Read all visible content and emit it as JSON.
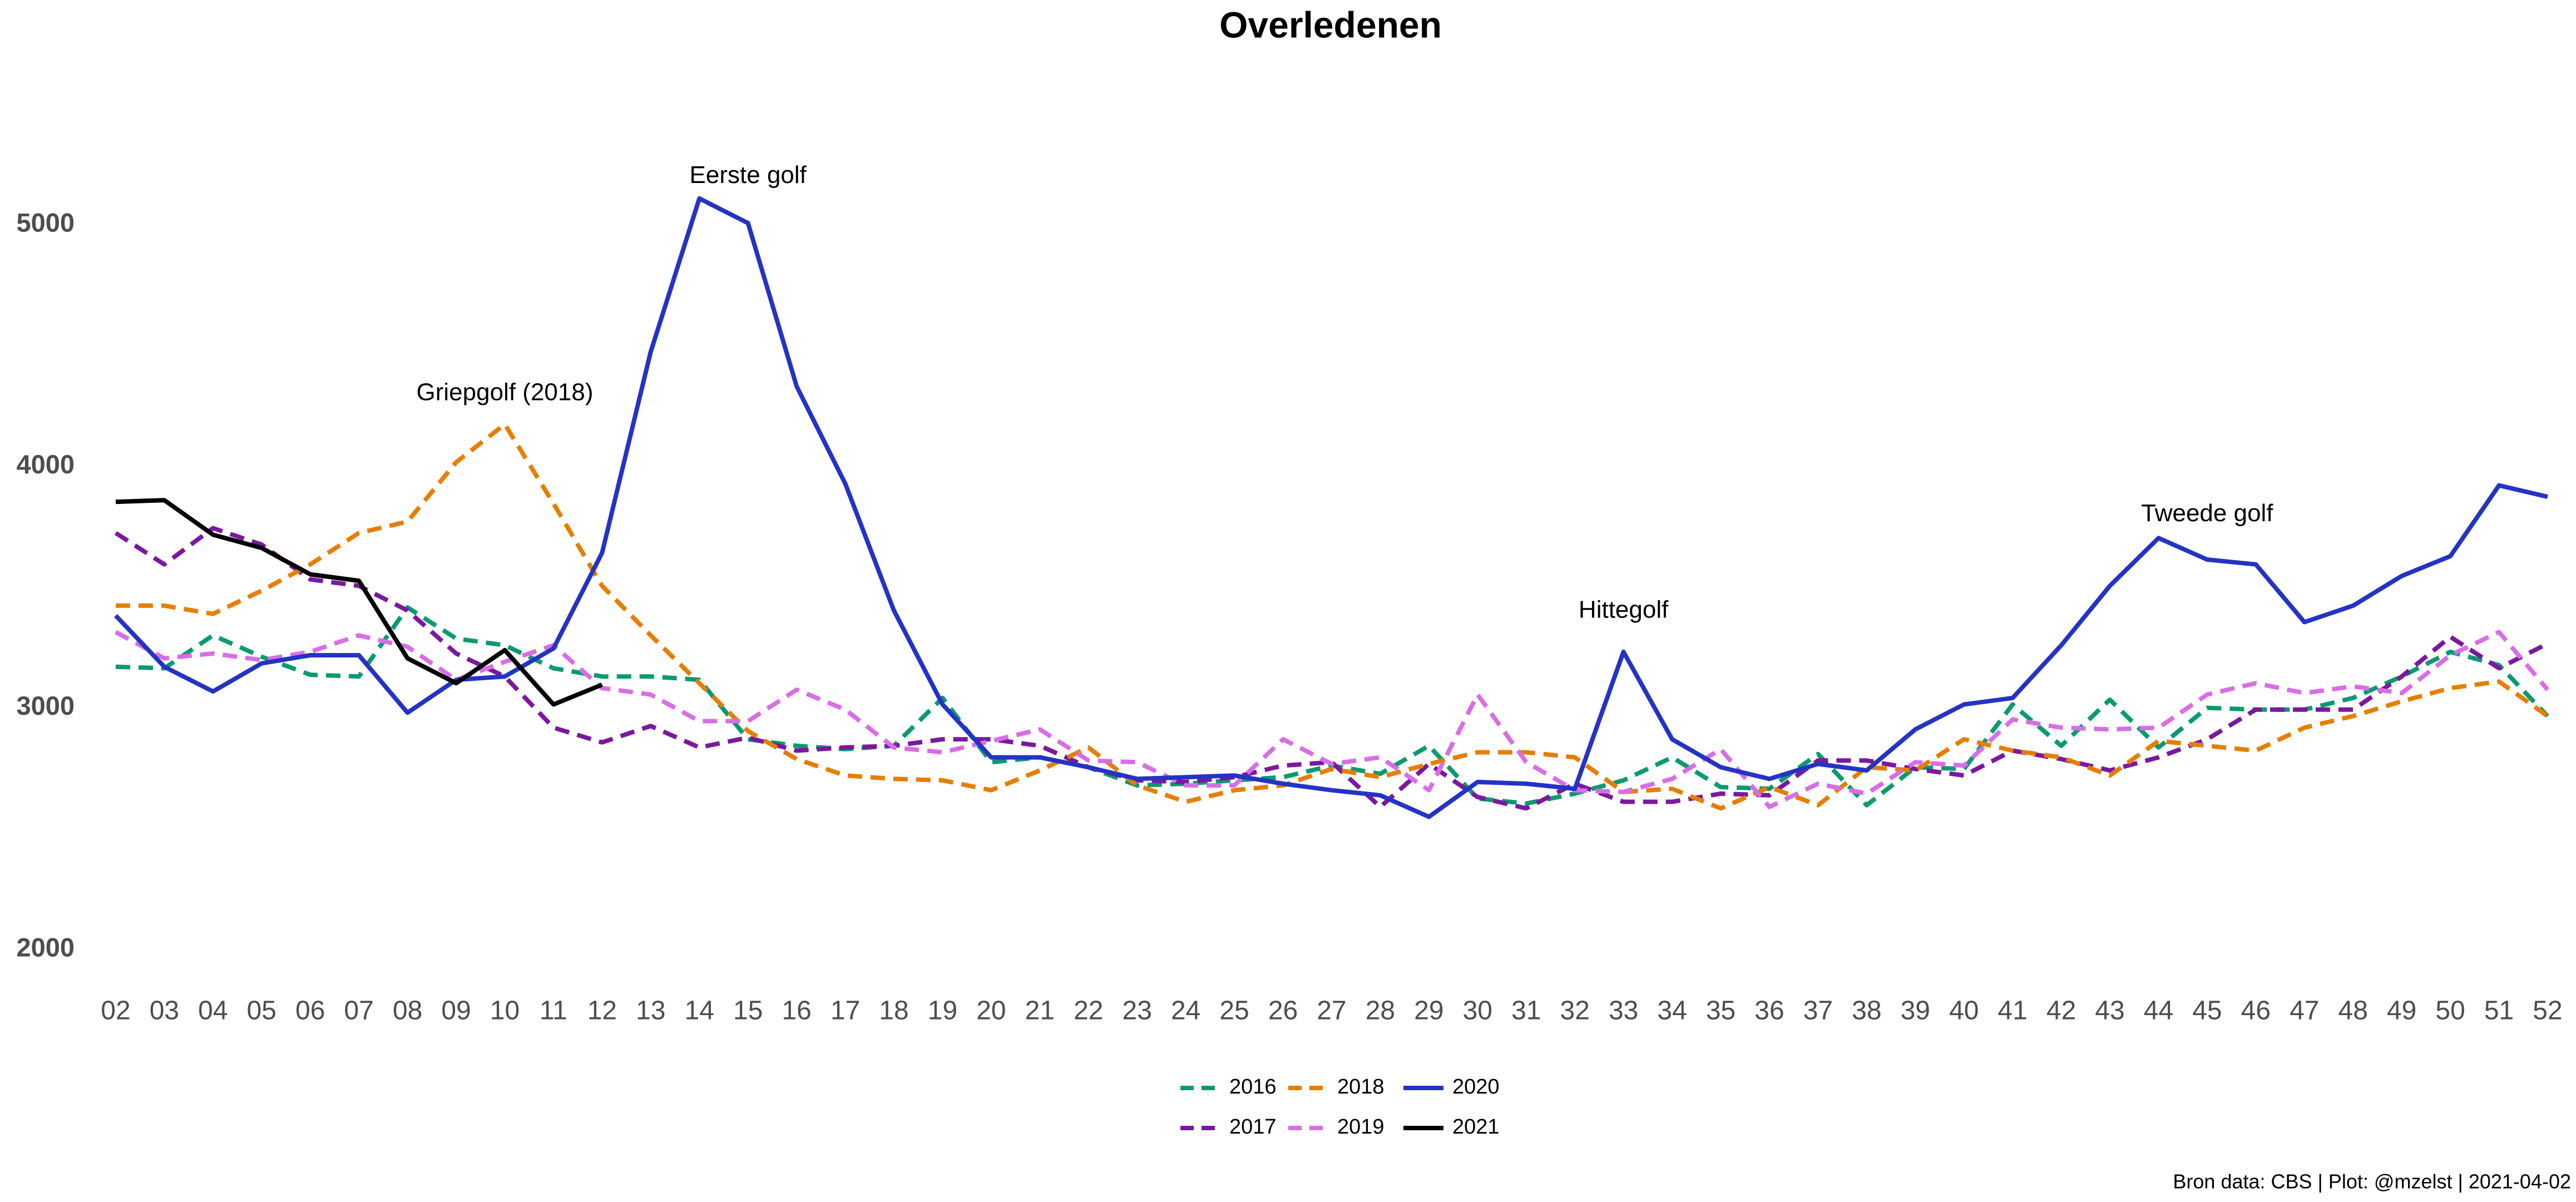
{
  "chart_data": {
    "type": "line",
    "title": "Overledenen",
    "caption": "Bron data: CBS  | Plot: @mzelst |  2021-04-02",
    "categories": [
      "02",
      "03",
      "04",
      "05",
      "06",
      "07",
      "08",
      "09",
      "10",
      "11",
      "12",
      "13",
      "14",
      "15",
      "16",
      "17",
      "18",
      "19",
      "20",
      "21",
      "22",
      "23",
      "24",
      "25",
      "26",
      "27",
      "28",
      "29",
      "30",
      "31",
      "32",
      "33",
      "34",
      "35",
      "36",
      "37",
      "38",
      "39",
      "40",
      "41",
      "42",
      "43",
      "44",
      "45",
      "46",
      "47",
      "48",
      "49",
      "50",
      "51",
      "52"
    ],
    "ylim": [
      1850,
      5500
    ],
    "yticks": [
      2000,
      3000,
      4000,
      5000
    ],
    "grid": false,
    "legend": "bottom",
    "series": [
      {
        "name": "2016",
        "color": "#0a9a72",
        "line_style": "dashed",
        "values": [
          3170,
          3164,
          3300,
          3212,
          3137,
          3130,
          3416,
          3287,
          3259,
          3164,
          3130,
          3130,
          3116,
          2870,
          2843,
          2829,
          2843,
          3041,
          2775,
          2795,
          2754,
          2679,
          2686,
          2700,
          2713,
          2761,
          2727,
          2843,
          2625,
          2604,
          2645,
          2700,
          2795,
          2672,
          2665,
          2809,
          2597,
          2754,
          2747,
          3014,
          2843,
          3034,
          2836,
          3000,
          2993,
          2993,
          3041,
          3130,
          3232,
          3177,
          2966
        ]
      },
      {
        "name": "2017",
        "color": "#7b189f",
        "line_style": "dashed",
        "values": [
          3724,
          3594,
          3744,
          3676,
          3532,
          3505,
          3403,
          3225,
          3130,
          2918,
          2857,
          2925,
          2836,
          2877,
          2823,
          2836,
          2843,
          2870,
          2870,
          2843,
          2754,
          2700,
          2693,
          2713,
          2761,
          2775,
          2590,
          2768,
          2631,
          2584,
          2686,
          2611,
          2611,
          2645,
          2638,
          2782,
          2782,
          2747,
          2720,
          2823,
          2788,
          2741,
          2795,
          2870,
          2993,
          2993,
          2993,
          3130,
          3294,
          3164,
          3266
        ]
      },
      {
        "name": "2018",
        "color": "#e67e00",
        "line_style": "dashed",
        "values": [
          3423,
          3423,
          3389,
          3485,
          3594,
          3724,
          3771,
          4017,
          4174,
          3846,
          3505,
          3300,
          3102,
          2904,
          2788,
          2720,
          2706,
          2700,
          2659,
          2741,
          2836,
          2679,
          2611,
          2659,
          2679,
          2747,
          2713,
          2768,
          2816,
          2816,
          2795,
          2652,
          2665,
          2584,
          2672,
          2597,
          2754,
          2741,
          2870,
          2823,
          2795,
          2720,
          2863,
          2843,
          2823,
          2918,
          2966,
          3027,
          3082,
          3109,
          2966
        ]
      },
      {
        "name": "2019",
        "color": "#d86ee6",
        "line_style": "dashed",
        "values": [
          3314,
          3205,
          3225,
          3198,
          3232,
          3300,
          3253,
          3116,
          3191,
          3259,
          3082,
          3055,
          2945,
          2945,
          3075,
          2993,
          2836,
          2816,
          2863,
          2911,
          2782,
          2775,
          2679,
          2679,
          2870,
          2768,
          2795,
          2659,
          3055,
          2775,
          2659,
          2652,
          2706,
          2829,
          2590,
          2686,
          2645,
          2775,
          2761,
          2952,
          2918,
          2911,
          2918,
          3055,
          3102,
          3061,
          3089,
          3061,
          3218,
          3314,
          3075
        ]
      },
      {
        "name": "2020",
        "color": "#2433c4",
        "line_style": "solid",
        "values": [
          3382,
          3170,
          3068,
          3184,
          3218,
          3218,
          2980,
          3116,
          3130,
          3246,
          3642,
          4474,
          5109,
          5007,
          4331,
          3928,
          3403,
          3014,
          2795,
          2795,
          2754,
          2706,
          2713,
          2720,
          2686,
          2659,
          2638,
          2549,
          2693,
          2686,
          2665,
          3232,
          2870,
          2754,
          2706,
          2768,
          2741,
          2911,
          3014,
          3041,
          3259,
          3505,
          3703,
          3614,
          3594,
          3355,
          3423,
          3546,
          3628,
          3921,
          3874
        ]
      },
      {
        "name": "2021",
        "color": "#000000",
        "line_style": "solid",
        "values": [
          3853,
          3860,
          3717,
          3662,
          3553,
          3526,
          3205,
          3102,
          3239,
          3014,
          3096,
          null,
          null,
          null,
          null,
          null,
          null,
          null,
          null,
          null,
          null,
          null,
          null,
          null,
          null,
          null,
          null,
          null,
          null,
          null,
          null,
          null,
          null,
          null,
          null,
          null,
          null,
          null,
          null,
          null,
          null,
          null,
          null,
          null,
          null,
          null,
          null,
          null,
          null,
          null,
          null
        ]
      }
    ],
    "annotations": [
      {
        "text": "Griepgolf (2018)",
        "x": "10",
        "y": 4300
      },
      {
        "text": "Eerste golf",
        "x": "15",
        "y": 5200
      },
      {
        "text": "Hittegolf",
        "x": "33",
        "y": 3400
      },
      {
        "text": "Tweede golf",
        "x": "45",
        "y": 3800
      }
    ]
  }
}
